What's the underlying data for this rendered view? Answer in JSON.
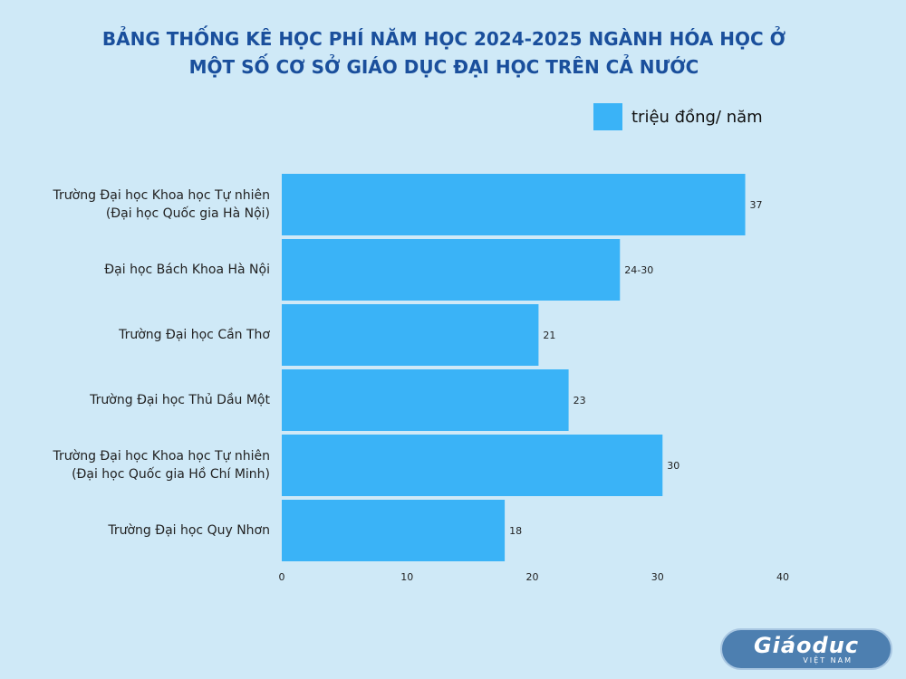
{
  "chart_data": {
    "type": "bar",
    "orientation": "horizontal",
    "title_lines": [
      "BẢNG THỐNG KÊ HỌC PHÍ NĂM HỌC 2024-2025 NGÀNH HÓA HỌC Ở",
      "MỘT SỐ CƠ SỞ GIÁO DỤC ĐẠI HỌC TRÊN CẢ NƯỚC"
    ],
    "legend": {
      "label": "triệu đồng/ năm",
      "placement": "top-right"
    },
    "categories": [
      [
        "Trường Đại học Khoa học Tự nhiên",
        "(Đại học Quốc gia Hà Nội)"
      ],
      [
        "Đại học Bách Khoa Hà Nội"
      ],
      [
        "Trường Đại học Cần Thơ"
      ],
      [
        "Trường Đại học Thủ Dầu Một"
      ],
      [
        "Trường Đại học Khoa học Tự nhiên",
        "(Đại học Quốc gia Hồ Chí Minh)"
      ],
      [
        "Trường Đại học Quy Nhơn"
      ]
    ],
    "values": [
      37,
      27,
      20.5,
      22.9,
      30.4,
      17.8
    ],
    "data_labels": [
      "37",
      "24-30",
      "21",
      "23",
      "30",
      "18"
    ],
    "xlim": [
      0,
      40
    ],
    "xticks": [
      "0",
      "10",
      "20",
      "30",
      "40"
    ],
    "grid": false,
    "bar_color": "#3ab3f7"
  },
  "watermark": {
    "main": "Giáoduc",
    "sub": "VIỆT NAM"
  }
}
